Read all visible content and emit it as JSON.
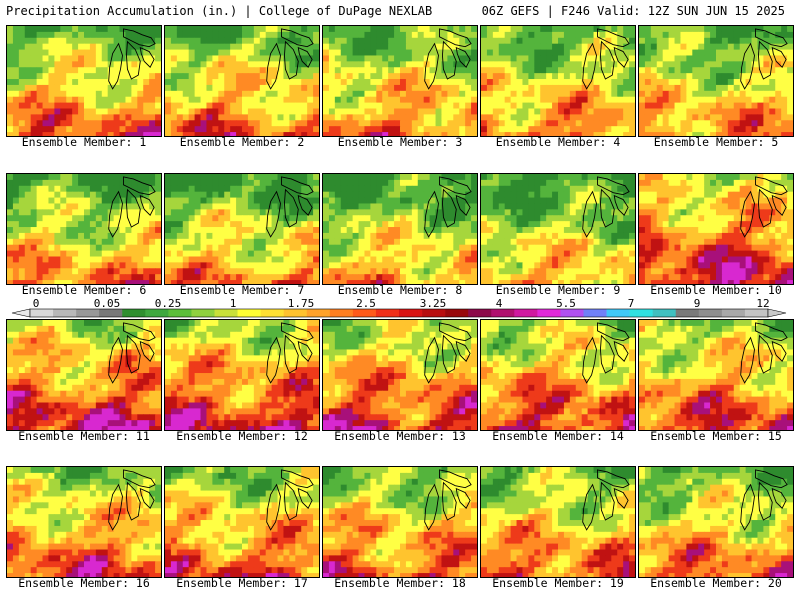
{
  "header": {
    "left_title": "Precipitation Accumulation (in.) | College of DuPage NEXLAB",
    "right_title": "06Z GEFS | F246 Valid: 12Z SUN JUN 15 2025"
  },
  "colorbar": {
    "tick_labels": [
      "0",
      "0.05",
      "0.25",
      "1",
      "1.75",
      "2.5",
      "3.25",
      "4",
      "5.5",
      "7",
      "9",
      "12"
    ],
    "colors": [
      "#d8d8d8",
      "#b8b8b8",
      "#989898",
      "#787878",
      "#2f8f2f",
      "#3fa83f",
      "#5cbf3a",
      "#8fd13f",
      "#c9e03a",
      "#ffff33",
      "#ffe033",
      "#ffc22e",
      "#ffa22a",
      "#ff7f22",
      "#ff5a1a",
      "#f03018",
      "#d81414",
      "#b80e10",
      "#98080c",
      "#8c0a4a",
      "#b0106e",
      "#d018a0",
      "#e028d8",
      "#b050f0",
      "#7080f8",
      "#40c8f8",
      "#30e0e0",
      "#40c0c0",
      "#7a7a7a",
      "#8e8e8e",
      "#a8a8a8",
      "#c4c4c4"
    ]
  },
  "panels": [
    {
      "label": "Ensemble Member: 1"
    },
    {
      "label": "Ensemble Member: 2"
    },
    {
      "label": "Ensemble Member: 3"
    },
    {
      "label": "Ensemble Member: 4"
    },
    {
      "label": "Ensemble Member: 5"
    },
    {
      "label": "Ensemble Member: 6"
    },
    {
      "label": "Ensemble Member: 7"
    },
    {
      "label": "Ensemble Member: 8"
    },
    {
      "label": "Ensemble Member: 9"
    },
    {
      "label": "Ensemble Member: 10"
    },
    {
      "label": "Ensemble Member: 11"
    },
    {
      "label": "Ensemble Member: 12"
    },
    {
      "label": "Ensemble Member: 13"
    },
    {
      "label": "Ensemble Member: 14"
    },
    {
      "label": "Ensemble Member: 15"
    },
    {
      "label": "Ensemble Member: 16"
    },
    {
      "label": "Ensemble Member: 17"
    },
    {
      "label": "Ensemble Member: 18"
    },
    {
      "label": "Ensemble Member: 19"
    },
    {
      "label": "Ensemble Member: 20"
    }
  ]
}
